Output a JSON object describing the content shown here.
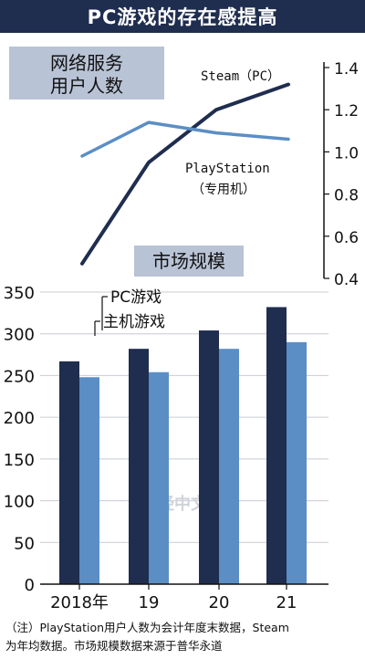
{
  "title": "PC游戏的存在感提高",
  "watermark": "日经中文网",
  "note_line1": "（注）PlayStation用户人数为会计年度末数据，Steam",
  "note_line2": "为年均数据。市场规模数据来源于普华永道",
  "colors": {
    "title_bg": "#1f2d4f",
    "label_bg": "#b9c3d6",
    "dark_series": "#1f2d4f",
    "light_series": "#5b8ec4"
  },
  "chart_data": [
    {
      "type": "line",
      "title_line1": "网络服务",
      "title_line2": "用户人数",
      "ylim": [
        0.4,
        1.4
      ],
      "y_ticks": [
        "1.4",
        "1.2",
        "1.0",
        "0.8",
        "0.6",
        "0.4"
      ],
      "x": [
        "2018",
        "2019",
        "2020",
        "2021"
      ],
      "series": [
        {
          "name": "Steam（PC）",
          "color": "#1f2d4f",
          "values": [
            0.47,
            0.95,
            1.2,
            1.32
          ]
        },
        {
          "name_line1": "PlayStation",
          "name_line2": "（专用机）",
          "color": "#5b8ec4",
          "values": [
            0.98,
            1.14,
            1.09,
            1.06
          ]
        }
      ]
    },
    {
      "type": "bar",
      "title": "市场规模",
      "categories": [
        "2018年",
        "19",
        "20",
        "21"
      ],
      "ylim": [
        0,
        350
      ],
      "y_ticks": [
        "350",
        "300",
        "250",
        "200",
        "150",
        "100",
        "50",
        "0"
      ],
      "series": [
        {
          "name": "PC游戏",
          "color": "#1f2d4f",
          "values": [
            267,
            282,
            304,
            332
          ]
        },
        {
          "name": "主机游戏",
          "color": "#5b8ec4",
          "values": [
            248,
            254,
            282,
            290
          ]
        }
      ]
    }
  ]
}
